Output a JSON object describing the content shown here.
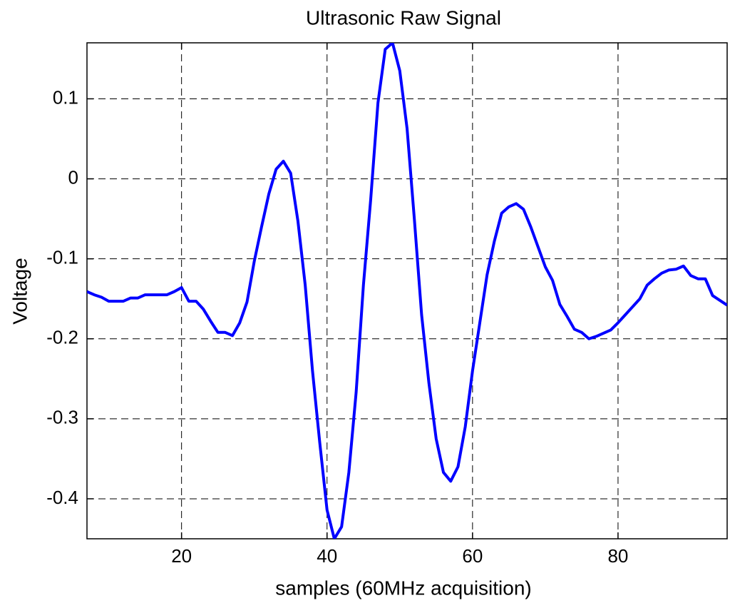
{
  "chart_data": {
    "type": "line",
    "title": "Ultrasonic Raw Signal",
    "xlabel": "samples (60MHz acquisition)",
    "ylabel": "Voltage",
    "x": [
      7,
      8,
      9,
      10,
      11,
      12,
      13,
      14,
      15,
      16,
      17,
      18,
      19,
      20,
      21,
      22,
      23,
      24,
      25,
      26,
      27,
      28,
      29,
      30,
      31,
      32,
      33,
      34,
      35,
      36,
      37,
      38,
      39,
      40,
      41,
      42,
      43,
      44,
      45,
      46,
      47,
      48,
      49,
      50,
      51,
      52,
      53,
      54,
      55,
      56,
      57,
      58,
      59,
      60,
      61,
      62,
      63,
      64,
      65,
      66,
      67,
      68,
      69,
      70,
      71,
      72,
      73,
      74,
      75,
      76,
      77,
      78,
      79,
      80,
      81,
      82,
      83,
      84,
      85,
      86,
      87,
      88,
      89,
      90,
      91,
      92,
      93,
      94,
      95
    ],
    "series": [
      {
        "color": "#0000ff",
        "values": [
          -0.141,
          -0.145,
          -0.148,
          -0.153,
          -0.153,
          -0.153,
          -0.149,
          -0.149,
          -0.145,
          -0.145,
          -0.145,
          -0.145,
          -0.141,
          -0.136,
          -0.153,
          -0.153,
          -0.163,
          -0.178,
          -0.192,
          -0.192,
          -0.196,
          -0.18,
          -0.154,
          -0.103,
          -0.06,
          -0.019,
          0.012,
          0.022,
          0.007,
          -0.053,
          -0.133,
          -0.24,
          -0.33,
          -0.414,
          -0.45,
          -0.435,
          -0.367,
          -0.267,
          -0.133,
          -0.026,
          0.095,
          0.162,
          0.17,
          0.135,
          0.063,
          -0.05,
          -0.17,
          -0.255,
          -0.325,
          -0.367,
          -0.378,
          -0.36,
          -0.31,
          -0.24,
          -0.18,
          -0.12,
          -0.078,
          -0.043,
          -0.035,
          -0.031,
          -0.038,
          -0.06,
          -0.085,
          -0.11,
          -0.127,
          -0.157,
          -0.172,
          -0.188,
          -0.192,
          -0.2,
          -0.197,
          -0.193,
          -0.189,
          -0.18,
          -0.17,
          -0.16,
          -0.15,
          -0.133,
          -0.125,
          -0.118,
          -0.114,
          -0.113,
          -0.109,
          -0.121,
          -0.125,
          -0.125,
          -0.146,
          -0.152,
          -0.158
        ]
      }
    ],
    "xlim": [
      7,
      95
    ],
    "xticks": [
      20,
      40,
      60,
      80
    ],
    "ylim": [
      -0.45,
      0.17
    ],
    "yticks": [
      -0.4,
      -0.3,
      -0.2,
      -0.1,
      0,
      0.1
    ],
    "grid": true
  }
}
